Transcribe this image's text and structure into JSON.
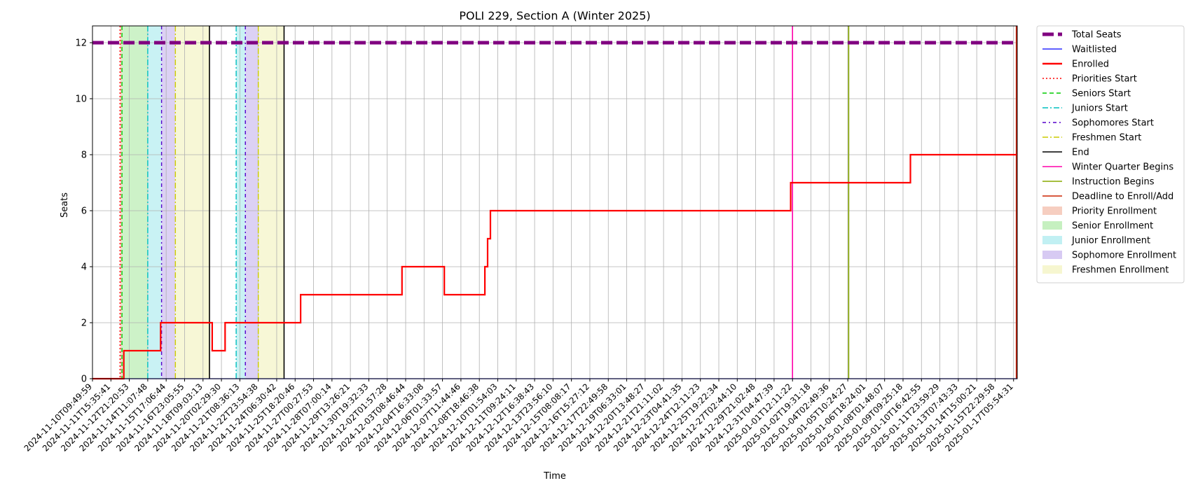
{
  "chart_data": {
    "type": "line",
    "title": "POLI 229, Section A (Winter 2025)",
    "xlabel": "Time",
    "ylabel": "Seats",
    "ylim": [
      0,
      12.6
    ],
    "yticks": [
      0,
      2,
      4,
      6,
      8,
      10,
      12
    ],
    "xlim_index": [
      0,
      50.2
    ],
    "grid": true,
    "legend_position": "outside-right",
    "x_tick_labels": [
      "2024-11-10T09:49:59",
      "2024-11-11T15:35:41",
      "2024-11-12T21:20:53",
      "2024-11-14T11:07:48",
      "2024-11-15T17:06:44",
      "2024-11-16T23:05:55",
      "2024-11-18T09:03:13",
      "2024-11-20T02:29:30",
      "2024-11-21T08:36:13",
      "2024-11-22T23:54:38",
      "2024-11-24T06:30:42",
      "2024-11-25T18:20:46",
      "2024-11-27T00:27:53",
      "2024-11-28T07:00:14",
      "2024-11-29T13:26:21",
      "2024-11-30T19:32:33",
      "2024-12-02T01:57:28",
      "2024-12-03T08:46:44",
      "2024-12-04T16:33:08",
      "2024-12-06T01:33:57",
      "2024-12-07T11:44:46",
      "2024-12-08T18:46:38",
      "2024-12-10T01:54:03",
      "2024-12-11T09:24:11",
      "2024-12-12T16:38:43",
      "2024-12-13T23:56:10",
      "2024-12-15T08:08:17",
      "2024-12-16T15:27:12",
      "2024-12-17T22:49:58",
      "2024-12-19T06:33:01",
      "2024-12-20T13:48:27",
      "2024-12-21T21:11:02",
      "2024-12-23T04:41:35",
      "2024-12-24T12:11:23",
      "2024-12-25T19:22:34",
      "2024-12-27T02:44:10",
      "2024-12-29T21:02:48",
      "2024-12-31T04:47:39",
      "2025-01-01T12:11:22",
      "2025-01-02T19:31:18",
      "2025-01-04T02:49:36",
      "2025-01-05T10:24:27",
      "2025-01-06T18:24:01",
      "2025-01-08T01:48:07",
      "2025-01-09T09:25:18",
      "2025-01-10T16:42:55",
      "2025-01-11T23:59:29",
      "2025-01-13T07:43:33",
      "2025-01-14T15:00:21",
      "2025-01-15T22:29:58",
      "2025-01-17T05:54:31"
    ],
    "series": [
      {
        "name": "Total Seats",
        "color": "#800080",
        "style": "dashed-thick",
        "points": [
          [
            0,
            12
          ],
          [
            50.2,
            12
          ]
        ]
      },
      {
        "name": "Waitlisted",
        "color": "#0000ff",
        "style": "solid-thin",
        "points": [
          [
            0,
            0
          ],
          [
            50.2,
            0
          ]
        ]
      },
      {
        "name": "Enrolled",
        "color": "#ff0000",
        "style": "step",
        "points": [
          [
            0,
            0
          ],
          [
            1.7,
            0
          ],
          [
            1.7,
            1
          ],
          [
            3.7,
            1
          ],
          [
            3.7,
            2
          ],
          [
            6.5,
            2
          ],
          [
            6.5,
            1
          ],
          [
            7.2,
            1
          ],
          [
            7.2,
            2
          ],
          [
            11.3,
            2
          ],
          [
            11.3,
            3
          ],
          [
            16.8,
            3
          ],
          [
            16.8,
            4
          ],
          [
            19.1,
            4
          ],
          [
            19.1,
            3
          ],
          [
            21.3,
            3
          ],
          [
            21.3,
            4
          ],
          [
            21.45,
            4
          ],
          [
            21.45,
            5
          ],
          [
            21.6,
            5
          ],
          [
            21.6,
            6
          ],
          [
            37.9,
            6
          ],
          [
            37.9,
            7
          ],
          [
            44.4,
            7
          ],
          [
            44.4,
            8
          ],
          [
            50.2,
            8
          ]
        ]
      }
    ],
    "vlines": [
      {
        "name": "Priorities Start",
        "color": "#ff0000",
        "style": "dotted",
        "x": [
          1.5,
          1.5
        ]
      },
      {
        "name": "Seniors Start",
        "color": "#00cc00",
        "style": "dashed",
        "x": [
          1.6
        ]
      },
      {
        "name": "Juniors Start",
        "color": "#00bfbf",
        "style": "dashdot",
        "x": [
          3.0,
          7.8
        ]
      },
      {
        "name": "Sophomores Start",
        "color": "#5500cc",
        "style": "dashdot-sparse",
        "x": [
          3.75,
          8.3
        ]
      },
      {
        "name": "Freshmen Start",
        "color": "#cccc00",
        "style": "dashdot",
        "x": [
          4.5,
          9.0
        ]
      },
      {
        "name": "End",
        "color": "#000000",
        "style": "solid",
        "x": [
          6.35,
          10.4
        ]
      },
      {
        "name": "Winter Quarter Begins",
        "color": "#ff00aa",
        "style": "solid",
        "x": [
          38.0
        ]
      },
      {
        "name": "Instruction Begins",
        "color": "#88aa00",
        "style": "solid",
        "x": [
          41.05
        ]
      },
      {
        "name": "Deadline to Enroll/Add",
        "color": "#cc2200",
        "style": "solid",
        "x": [
          50.15
        ]
      }
    ],
    "spans": [
      {
        "name": "Priority Enrollment",
        "color": "#f4c2b0",
        "ranges": [
          [
            1.5,
            1.6
          ]
        ]
      },
      {
        "name": "Senior Enrollment",
        "color": "#b8ecb0",
        "ranges": [
          [
            1.6,
            3.0
          ]
        ]
      },
      {
        "name": "Junior Enrollment",
        "color": "#b2ecf0",
        "ranges": [
          [
            3.0,
            3.75
          ],
          [
            7.8,
            8.3
          ]
        ]
      },
      {
        "name": "Sophomore Enrollment",
        "color": "#cdbdf0",
        "ranges": [
          [
            3.75,
            4.5
          ],
          [
            8.3,
            9.0
          ]
        ]
      },
      {
        "name": "Freshmen Enrollment",
        "color": "#f4f4c4",
        "ranges": [
          [
            4.5,
            6.35
          ],
          [
            9.0,
            10.4
          ]
        ]
      }
    ],
    "legend": [
      {
        "label": "Total Seats",
        "color": "#800080",
        "kind": "line",
        "style": "dashed-thick"
      },
      {
        "label": "Waitlisted",
        "color": "#0000ff",
        "kind": "line",
        "style": "solid-thin"
      },
      {
        "label": "Enrolled",
        "color": "#ff0000",
        "kind": "line",
        "style": "solid-bold"
      },
      {
        "label": "Priorities Start",
        "color": "#ff0000",
        "kind": "line",
        "style": "dotted"
      },
      {
        "label": "Seniors Start",
        "color": "#00cc00",
        "kind": "line",
        "style": "dashed"
      },
      {
        "label": "Juniors Start",
        "color": "#00bfbf",
        "kind": "line",
        "style": "dashdot"
      },
      {
        "label": "Sophomores Start",
        "color": "#5500cc",
        "kind": "line",
        "style": "dashdot-sparse"
      },
      {
        "label": "Freshmen Start",
        "color": "#cccc00",
        "kind": "line",
        "style": "dashdot"
      },
      {
        "label": "End",
        "color": "#000000",
        "kind": "line",
        "style": "solid"
      },
      {
        "label": "Winter Quarter Begins",
        "color": "#ff00aa",
        "kind": "line",
        "style": "solid"
      },
      {
        "label": "Instruction Begins",
        "color": "#88aa00",
        "kind": "line",
        "style": "solid"
      },
      {
        "label": "Deadline to Enroll/Add",
        "color": "#cc2200",
        "kind": "line",
        "style": "solid"
      },
      {
        "label": "Priority Enrollment",
        "color": "#f4c2b0",
        "kind": "patch"
      },
      {
        "label": "Senior Enrollment",
        "color": "#b8ecb0",
        "kind": "patch"
      },
      {
        "label": "Junior Enrollment",
        "color": "#b2ecf0",
        "kind": "patch"
      },
      {
        "label": "Sophomore Enrollment",
        "color": "#cdbdf0",
        "kind": "patch"
      },
      {
        "label": "Freshmen Enrollment",
        "color": "#f4f4c4",
        "kind": "patch"
      }
    ]
  }
}
